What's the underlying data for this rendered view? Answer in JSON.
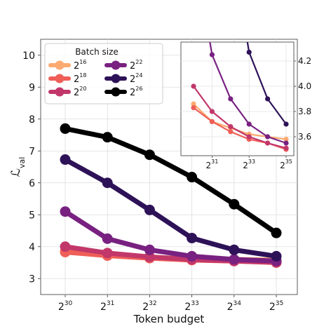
{
  "chart_data": {
    "type": "line",
    "xlabel": "Token budget",
    "ylabel": "ℒ_val",
    "ylabel_main": "ℒ",
    "ylabel_sub": "val",
    "x_scale": "log2",
    "x": [
      1073741824,
      2147483648,
      4294967296,
      8589934592,
      17179869184,
      34359738368
    ],
    "x_tick_labels": [
      {
        "base": "2",
        "exp": "30"
      },
      {
        "base": "2",
        "exp": "31"
      },
      {
        "base": "2",
        "exp": "32"
      },
      {
        "base": "2",
        "exp": "33"
      },
      {
        "base": "2",
        "exp": "34"
      },
      {
        "base": "2",
        "exp": "35"
      }
    ],
    "ylim": [
      2.5,
      10.5
    ],
    "y_ticks": [
      "3",
      "4",
      "5",
      "6",
      "7",
      "8",
      "9",
      "10"
    ],
    "grid": true,
    "legend": {
      "title": "Batch size",
      "placement": "top-left",
      "columns": 2
    },
    "series": [
      {
        "name": "2^16",
        "label_base": "2",
        "label_exp": "16",
        "color": "#fcaa70",
        "values": [
          3.86,
          3.72,
          3.67,
          3.62,
          3.6,
          3.58
        ]
      },
      {
        "name": "2^18",
        "label_base": "2",
        "label_exp": "18",
        "color": "#ef5f58",
        "values": [
          3.83,
          3.72,
          3.64,
          3.58,
          3.55,
          3.5
        ]
      },
      {
        "name": "2^20",
        "label_base": "2",
        "label_exp": "20",
        "color": "#c2376a",
        "values": [
          4.0,
          3.8,
          3.68,
          3.6,
          3.55,
          3.51
        ]
      },
      {
        "name": "2^22",
        "label_base": "2",
        "label_exp": "22",
        "color": "#782181",
        "values": [
          5.1,
          4.25,
          3.9,
          3.7,
          3.6,
          3.55
        ]
      },
      {
        "name": "2^24",
        "label_base": "2",
        "label_exp": "24",
        "color": "#2e1258",
        "values": [
          6.73,
          6.0,
          5.15,
          4.27,
          3.9,
          3.7
        ]
      },
      {
        "name": "2^26",
        "label_base": "2",
        "label_exp": "26",
        "color": "#000000",
        "values": [
          7.7,
          7.43,
          6.88,
          6.18,
          5.33,
          4.43
        ]
      }
    ],
    "inset": {
      "ylim": [
        3.45,
        4.35
      ],
      "y_ticks": [
        "3.6",
        "3.8",
        "4.0",
        "4.2"
      ],
      "x_tick_labels": [
        {
          "base": "2",
          "exp": "31"
        },
        {
          "base": "2",
          "exp": "33"
        },
        {
          "base": "2",
          "exp": "35"
        }
      ],
      "x_tick_positions": [
        1,
        3,
        5
      ]
    }
  }
}
